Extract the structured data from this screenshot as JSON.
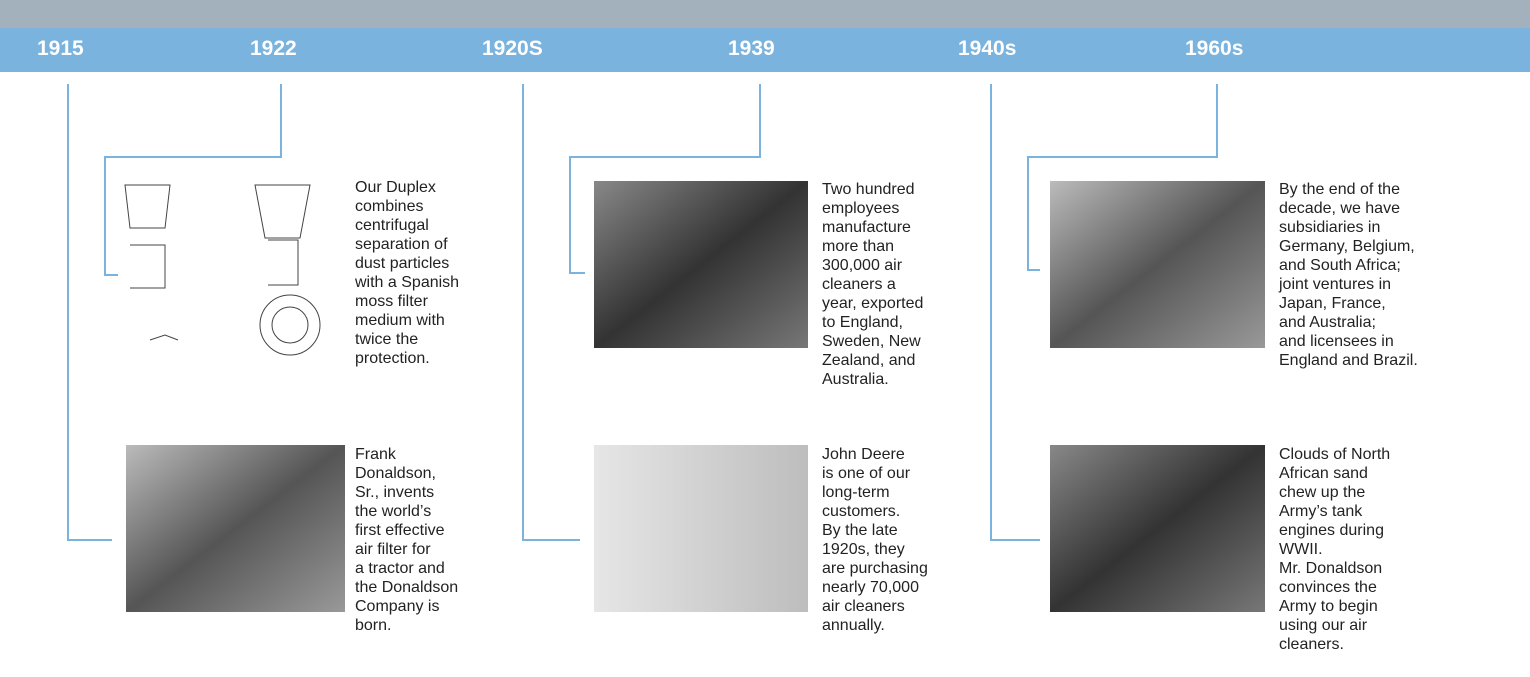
{
  "timeline": [
    {
      "year": "1915",
      "caption": [
        "Frank",
        "Donaldson,",
        "Sr., invents",
        "the world’s",
        "first effective",
        "air filter for",
        "a tractor and",
        "the Donaldson",
        "Company is",
        "born."
      ]
    },
    {
      "year": "1922",
      "caption": [
        "Our Duplex",
        "combines",
        "centrifugal",
        "separation of",
        "dust particles",
        "with a Spanish",
        "moss filter",
        "medium with",
        "twice the",
        "protection."
      ]
    },
    {
      "year": "1920S",
      "caption": [
        "John Deere",
        "is one of our",
        "long-term",
        "customers.",
        "By the late",
        "1920s, they",
        "are purchasing",
        "nearly 70,000",
        "air cleaners",
        "annually."
      ]
    },
    {
      "year": "1939",
      "caption": [
        "Two hundred",
        "employees",
        "manufacture",
        "more than",
        "300,000 air",
        "cleaners a",
        "year, exported",
        "to England,",
        "Sweden, New",
        "Zealand, and",
        "Australia."
      ]
    },
    {
      "year": "1940s",
      "caption": [
        "Clouds of North",
        "African sand",
        "chew up the",
        "Army’s tank",
        "engines during",
        "WWII.",
        "Mr. Donaldson",
        "convinces the",
        "Army to begin",
        "using our air",
        "cleaners."
      ]
    },
    {
      "year": "1960s",
      "caption": [
        "By the end of the",
        "decade, we have",
        "subsidiaries in",
        "Germany, Belgium,",
        "and South Africa;",
        "joint ventures in",
        "Japan, France,",
        "and Australia;",
        "and licensees in",
        "England and Brazil."
      ]
    }
  ]
}
